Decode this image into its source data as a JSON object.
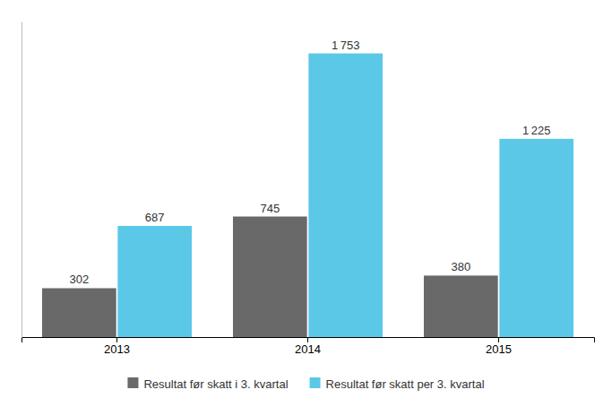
{
  "chart_data": {
    "type": "bar",
    "categories": [
      "2013",
      "2014",
      "2015"
    ],
    "series": [
      {
        "name": "Resultat før skatt i 3. kvartal",
        "color": "#696969",
        "values": [
          302,
          745,
          380
        ],
        "value_labels": [
          "302",
          "745",
          "380"
        ]
      },
      {
        "name": "Resultat før skatt per 3. kvartal",
        "color": "#5BC8E8",
        "values": [
          687,
          1753,
          1225
        ],
        "value_labels": [
          "687",
          "1 753",
          "1 225"
        ]
      }
    ],
    "ylim": [
      0,
      1950
    ],
    "grid": false,
    "legend": "bottom",
    "data_labels": true,
    "tick_labels": "x"
  }
}
